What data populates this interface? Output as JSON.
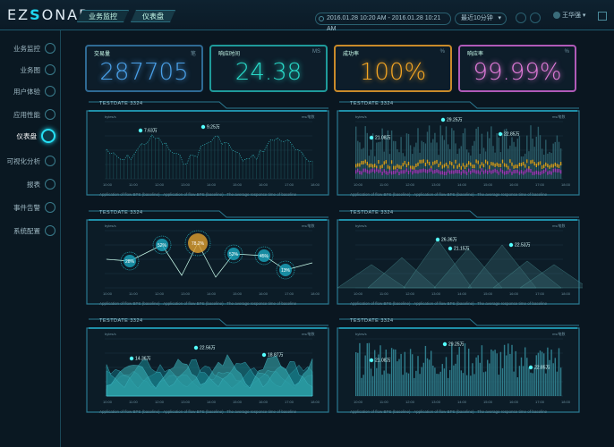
{
  "app": {
    "logo_prefix": "EZ",
    "logo_mark": "S",
    "logo_suffix": "ONAR"
  },
  "breadcrumb": [
    "业务监控",
    "仪表盘"
  ],
  "header": {
    "date_range": "2016.01.28 10:20 AM  -  2016.01.28 10:21 AM",
    "range_select": "最近10分钟",
    "user": "王华强"
  },
  "sidebar": {
    "items": [
      {
        "label": "业务监控",
        "icon": "monitor-icon"
      },
      {
        "label": "业务图",
        "icon": "chart-icon"
      },
      {
        "label": "用户体验",
        "icon": "user-icon"
      },
      {
        "label": "应用性能",
        "icon": "app-icon"
      },
      {
        "label": "仪表盘",
        "icon": "dashboard-icon",
        "active": true
      },
      {
        "label": "可视化分析",
        "icon": "gear-icon"
      },
      {
        "label": "报表",
        "icon": "report-icon"
      },
      {
        "label": "事件告警",
        "icon": "alert-icon"
      },
      {
        "label": "系统配置",
        "icon": "settings-icon"
      }
    ]
  },
  "kpis": [
    {
      "label": "交易量",
      "unit": "笔",
      "value": "287705",
      "color": "#4aa0e8",
      "border": "#2f6a94"
    },
    {
      "label": "响应时间",
      "unit": "MS",
      "value": "24.38",
      "color": "#28d9c8",
      "border": "#1f9a9a"
    },
    {
      "label": "成功率",
      "unit": "%",
      "value": "100%",
      "color": "#f5a623",
      "border": "#c98a2a"
    },
    {
      "label": "响应率",
      "unit": "%",
      "value": "99.99%",
      "color": "#e07ad8",
      "border": "#b05ab8"
    }
  ],
  "panel_title": "TESTDATE 3324",
  "panel_legend": [
    "Application of flow BPS (baseline)",
    "Application of flow BPS (baseline)",
    "The average response time of baseline"
  ],
  "axis": {
    "left_unit": "bytes/s",
    "right_unit": "ms/笔数",
    "x_ticks": [
      "10:00",
      "11:00",
      "12:00",
      "13:00",
      "14:00",
      "15:00",
      "16:00",
      "17:00",
      "18:00"
    ]
  },
  "annotations": {
    "p1": [
      "7.63万",
      "9.25万"
    ],
    "p2": [
      "29.25万",
      "21.08万",
      "22.85万"
    ],
    "p3": [
      "28%",
      "52%",
      "78.2%",
      "52%",
      "45%",
      "13%"
    ],
    "p4": [
      "26.36万",
      "21.15万",
      "22.53万"
    ],
    "p5": [
      "14.36万",
      "22.56万",
      "18.87万"
    ],
    "p6": [
      "29.25万",
      "21.08万",
      "22.85万"
    ]
  }
}
